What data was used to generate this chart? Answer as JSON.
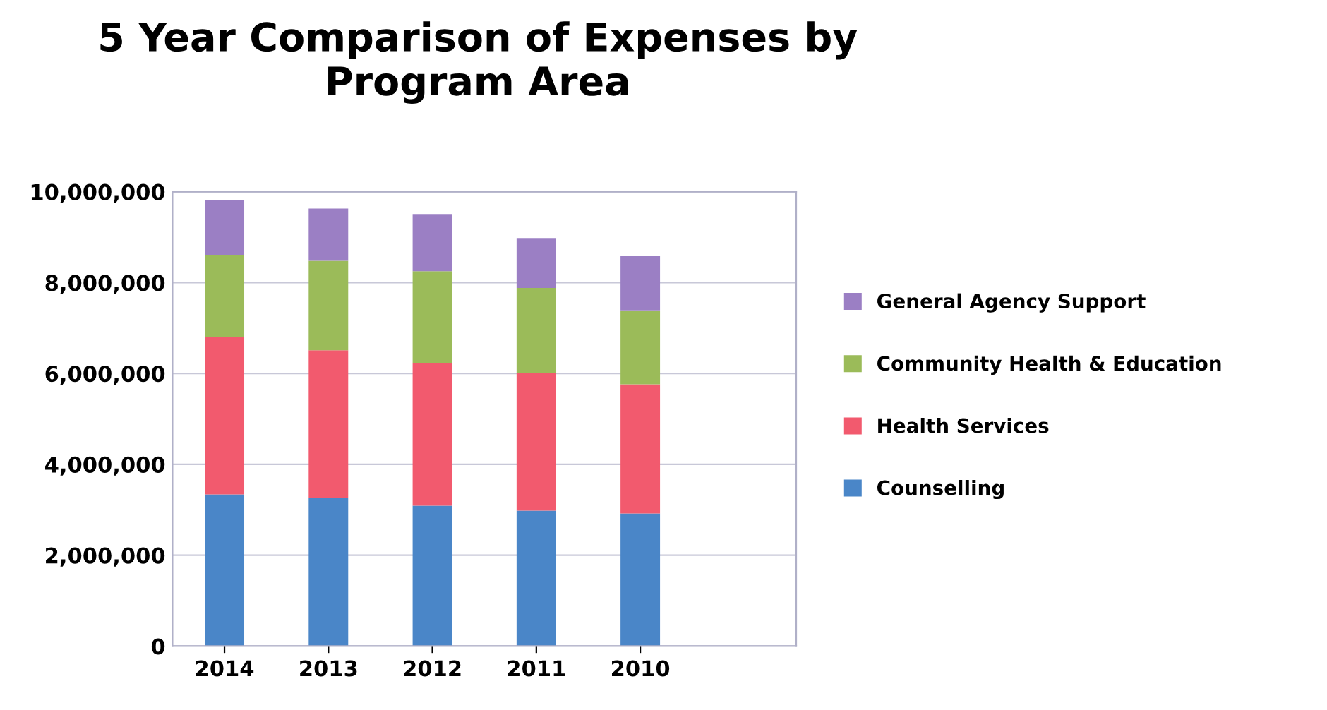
{
  "chart_data": {
    "type": "bar",
    "title": "5 Year Comparison of Expenses by Program Area",
    "categories": [
      "2014",
      "2013",
      "2012",
      "2011",
      "2010"
    ],
    "stacked": true,
    "series": [
      {
        "name": "Counselling",
        "color": "#4a86c8",
        "values": [
          3340000,
          3260000,
          3090000,
          2980000,
          2920000
        ]
      },
      {
        "name": "Health Services",
        "color": "#f25a6e",
        "values": [
          3470000,
          3250000,
          3140000,
          3030000,
          2840000
        ]
      },
      {
        "name": "Community Health & Education",
        "color": "#9bbb59",
        "values": [
          1790000,
          1970000,
          2020000,
          1870000,
          1630000
        ]
      },
      {
        "name": "General Agency Support",
        "color": "#9b7fc4",
        "values": [
          1210000,
          1150000,
          1260000,
          1100000,
          1190000
        ]
      }
    ],
    "ylim": [
      0,
      10000000
    ],
    "yticks": [
      {
        "value": 0,
        "label": "0"
      },
      {
        "value": 2000000,
        "label": "2,000,000"
      },
      {
        "value": 4000000,
        "label": "4,000,000"
      },
      {
        "value": 6000000,
        "label": "6,000,000"
      },
      {
        "value": 8000000,
        "label": "8,000,000"
      },
      {
        "value": 10000000,
        "label": "10,000,000"
      }
    ],
    "grid": "y",
    "legend": "right"
  }
}
